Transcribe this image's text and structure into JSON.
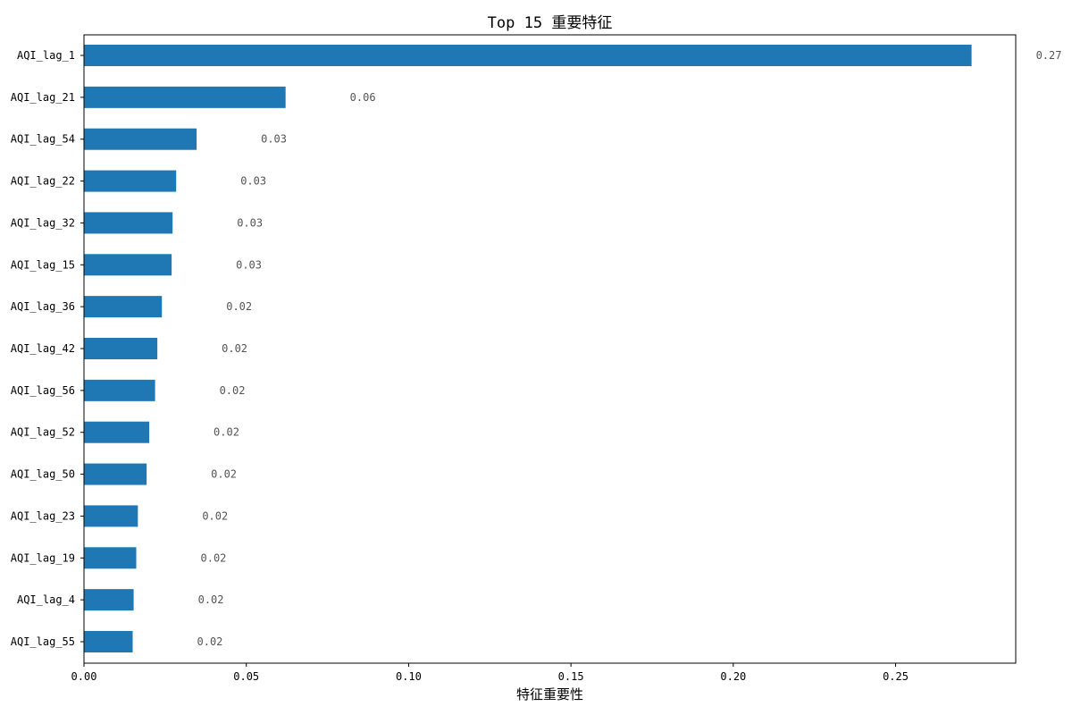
{
  "chart_data": {
    "type": "bar",
    "orientation": "horizontal",
    "title": "Top 15 重要特征",
    "xlabel": "特征重要性",
    "ylabel": "",
    "xlim": [
      0.0,
      0.287
    ],
    "xticks": [
      0.0,
      0.05,
      0.1,
      0.15,
      0.2,
      0.25
    ],
    "xtick_labels": [
      "0.00",
      "0.05",
      "0.10",
      "0.15",
      "0.20",
      "0.25"
    ],
    "grid": false,
    "bar_color": "#1f77b4",
    "categories": [
      "AQI_lag_1",
      "AQI_lag_21",
      "AQI_lag_54",
      "AQI_lag_22",
      "AQI_lag_32",
      "AQI_lag_15",
      "AQI_lag_36",
      "AQI_lag_42",
      "AQI_lag_56",
      "AQI_lag_52",
      "AQI_lag_50",
      "AQI_lag_23",
      "AQI_lag_19",
      "AQI_lag_4",
      "AQI_lag_55"
    ],
    "values": [
      0.2734,
      0.0621,
      0.0347,
      0.0284,
      0.0273,
      0.027,
      0.024,
      0.0226,
      0.0219,
      0.0201,
      0.0193,
      0.0166,
      0.0161,
      0.0153,
      0.015
    ],
    "value_labels": [
      "0.27",
      "0.06",
      "0.03",
      "0.03",
      "0.03",
      "0.03",
      "0.02",
      "0.02",
      "0.02",
      "0.02",
      "0.02",
      "0.02",
      "0.02",
      "0.02",
      "0.02"
    ]
  }
}
